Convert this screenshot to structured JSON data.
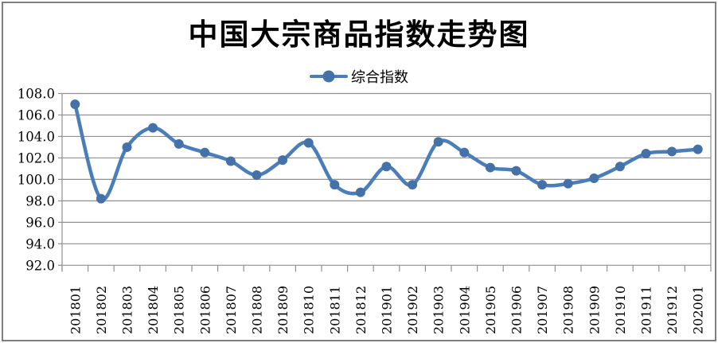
{
  "chart": {
    "title": "中国大宗商品指数走势图",
    "legend_label": "综合指数"
  },
  "chart_data": {
    "type": "line",
    "title": "中国大宗商品指数走势图",
    "categories": [
      "201801",
      "201802",
      "201803",
      "201804",
      "201805",
      "201806",
      "201807",
      "201808",
      "201809",
      "201810",
      "201811",
      "201812",
      "201901",
      "201902",
      "201903",
      "201904",
      "201905",
      "201906",
      "201907",
      "201908",
      "201909",
      "201910",
      "201911",
      "201912",
      "202001"
    ],
    "series": [
      {
        "name": "综合指数",
        "values": [
          107.0,
          98.2,
          103.0,
          104.8,
          103.3,
          102.5,
          101.7,
          100.4,
          101.8,
          103.4,
          99.5,
          98.8,
          101.2,
          99.5,
          103.5,
          102.5,
          101.1,
          100.8,
          99.5,
          99.6,
          100.1,
          101.2,
          102.4,
          102.6,
          102.8
        ]
      }
    ],
    "xlabel": "",
    "ylabel": "",
    "ylim": [
      92.0,
      108.0
    ],
    "ytick_step": 2.0,
    "yticks": [
      "108.0",
      "106.0",
      "104.0",
      "102.0",
      "100.0",
      "98.0",
      "96.0",
      "94.0",
      "92.0"
    ],
    "grid": true,
    "smooth": true,
    "marker": "circle",
    "legend_position": "top-center",
    "x_labels_rotated_degrees": 90
  },
  "colors": {
    "line": "#4A7EBB",
    "marker": "#4472A8",
    "grid": "#909090",
    "axis": "#909090",
    "text": "#000000",
    "background": "#FFFFFF",
    "frame_border": "#7F7F7F"
  }
}
